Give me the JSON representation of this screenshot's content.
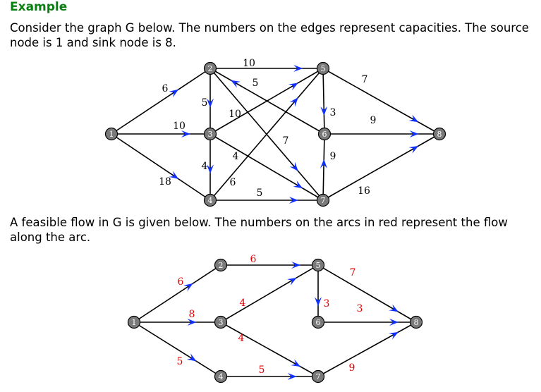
{
  "title": "Example",
  "paragraph1": "Consider the graph G below. The numbers on the edges represent capacities. The source node is 1 and sink node is 8.",
  "paragraph2": "A feasible flow in G is given below. The numbers on the arcs in red represent the flow along the arc.",
  "arrow_color": "#1030ff",
  "flow_label_color": "#e00000",
  "graph1": {
    "nodes": [
      "1",
      "2",
      "3",
      "4",
      "5",
      "6",
      "7",
      "8"
    ],
    "edges": [
      {
        "from": "1",
        "to": "2",
        "label": "6"
      },
      {
        "from": "1",
        "to": "3",
        "label": "10"
      },
      {
        "from": "1",
        "to": "4",
        "label": "18"
      },
      {
        "from": "2",
        "to": "5",
        "label": "10"
      },
      {
        "from": "2",
        "to": "3",
        "label": "5"
      },
      {
        "from": "2",
        "to": "7",
        "label": "7"
      },
      {
        "from": "6",
        "to": "2",
        "label": "5"
      },
      {
        "from": "3",
        "to": "5",
        "label": "10"
      },
      {
        "from": "3",
        "to": "4",
        "label": "4"
      },
      {
        "from": "3",
        "to": "7",
        "label": "4"
      },
      {
        "from": "4",
        "to": "5",
        "label": "6"
      },
      {
        "from": "4",
        "to": "7",
        "label": "5"
      },
      {
        "from": "5",
        "to": "6",
        "label": "3"
      },
      {
        "from": "5",
        "to": "8",
        "label": "7"
      },
      {
        "from": "6",
        "to": "8",
        "label": "9"
      },
      {
        "from": "7",
        "to": "6",
        "label": "9"
      },
      {
        "from": "7",
        "to": "8",
        "label": "16"
      }
    ]
  },
  "graph2": {
    "nodes": [
      "1",
      "2",
      "3",
      "4",
      "5",
      "6",
      "7",
      "8"
    ],
    "edges": [
      {
        "from": "1",
        "to": "2",
        "label": "6"
      },
      {
        "from": "1",
        "to": "3",
        "label": "8"
      },
      {
        "from": "1",
        "to": "4",
        "label": "5"
      },
      {
        "from": "2",
        "to": "5",
        "label": "6"
      },
      {
        "from": "3",
        "to": "5",
        "label": "4"
      },
      {
        "from": "3",
        "to": "7",
        "label": "4"
      },
      {
        "from": "4",
        "to": "7",
        "label": "5"
      },
      {
        "from": "5",
        "to": "6",
        "label": "3"
      },
      {
        "from": "5",
        "to": "8",
        "label": "7"
      },
      {
        "from": "6",
        "to": "8",
        "label": "3"
      },
      {
        "from": "7",
        "to": "8",
        "label": "9"
      }
    ]
  }
}
